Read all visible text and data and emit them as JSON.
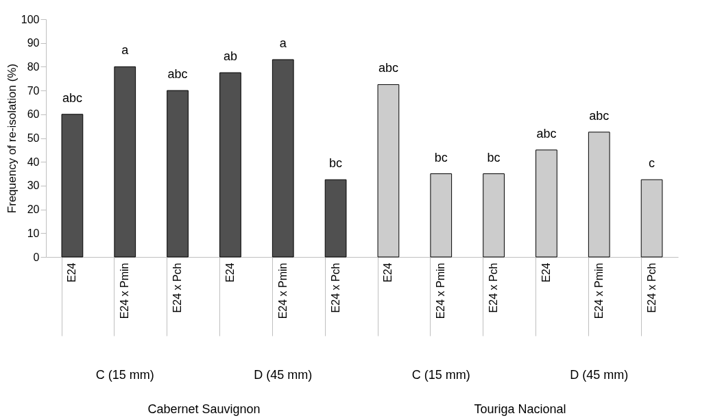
{
  "chart_data": {
    "type": "bar",
    "ylabel": "Frequency of re-isolation (%)",
    "categories": [
      "E24",
      "E24 x Pmin",
      "E24 x Pch",
      "E24",
      "E24 x Pmin",
      "E24 x Pch",
      "E24",
      "E24 x Pmin",
      "E24 x Pch",
      "E24",
      "E24 x Pmin",
      "E24 x Pch"
    ],
    "values": [
      60,
      80,
      70,
      77.5,
      83,
      32.5,
      72.5,
      35,
      35,
      45,
      52.5,
      32.5
    ],
    "colors": [
      "#505050",
      "#505050",
      "#505050",
      "#505050",
      "#505050",
      "#505050",
      "#cccccc",
      "#cccccc",
      "#cccccc",
      "#cccccc",
      "#cccccc",
      "#cccccc"
    ],
    "value_labels": [
      "abc",
      "a",
      "abc",
      "ab",
      "a",
      "bc",
      "abc",
      "bc",
      "bc",
      "abc",
      "abc",
      "c"
    ],
    "annotations": [
      "C (15 mm)",
      "D (45 mm)",
      "C (15 mm)",
      "D (45 mm)",
      "Cabernet Sauvignon",
      "Touriga Nacional"
    ],
    "ylim": [
      0,
      100
    ],
    "yticks": [
      0,
      10,
      20,
      30,
      40,
      50,
      60,
      70,
      80,
      90,
      100
    ],
    "grid": false
  }
}
